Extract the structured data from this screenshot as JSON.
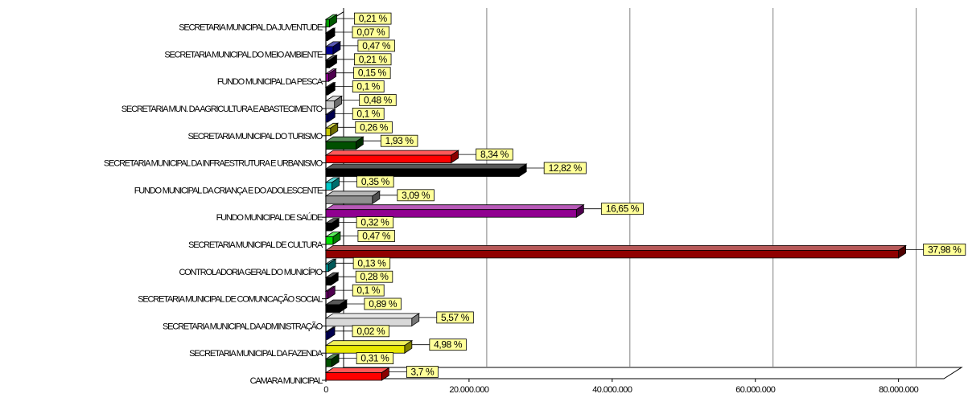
{
  "chart_data": {
    "type": "bar",
    "orientation": "horizontal",
    "three_d": true,
    "title": "",
    "xlabel": "",
    "ylabel": "",
    "xlim": [
      0,
      86000000
    ],
    "x_ticks": [
      0,
      20000000,
      40000000,
      60000000,
      80000000
    ],
    "x_tick_labels": [
      "0",
      "20.000.000",
      "40.000.000",
      "60.000.000",
      "80.000.000"
    ],
    "grid": "vertical",
    "legend": "none",
    "categories": [
      "SECRETARIA MUNICIPAL DA JUVENTUDE",
      "SECRETARIA MUNICIPAL DO MEIO AMBIENTE",
      "FUNDO MUNICIPAL DA PESCA",
      "SECRETARIA MUN. DA AGRICULTURA E ABASTECIMENTO",
      "SECRETARIA MUNICIPAL DO TURISMO",
      "SECRETARIA MUNICIPAL DA INFRAESTRUTURA E URBANISMO",
      "FUNDO MUNICIPAL DA CRIANÇA E DO ADOLESCENTE",
      "FUNDO MUNICIPAL DE SAÚDE",
      "SECRETARIA MUNICIPAL DE CULTURA",
      "CONTROLADORIA GERAL DO MUNICÍPIO",
      "SECRETARIA MUNICIPAL DE COMUNICAÇÃO SOCIAL",
      "SECRETARIA MUNICIPAL DA ADMINISTRAÇÃO",
      "SECRETARIA MUNICIPAL DA FAZENDA",
      "CAMARA MUNICIPAL"
    ],
    "category_label_index": [
      0,
      2,
      4,
      6,
      8,
      10,
      12,
      14,
      16,
      18,
      20,
      22,
      24,
      26
    ],
    "bars": [
      {
        "value": 500000,
        "color": "#00a000",
        "label": "0,21 %"
      },
      {
        "value": 200000,
        "color": "#000000",
        "label": "0,07 %"
      },
      {
        "value": 1000000,
        "color": "#000090",
        "label": "0,47 %"
      },
      {
        "value": 500000,
        "color": "#000000",
        "label": "0,21 %"
      },
      {
        "value": 400000,
        "color": "#900090",
        "label": "0,15 %"
      },
      {
        "value": 250000,
        "color": "#000000",
        "label": "0,1 %"
      },
      {
        "value": 1200000,
        "color": "#c8c8c8",
        "label": "0,48 %"
      },
      {
        "value": 250000,
        "color": "#000090",
        "label": "0,1 %"
      },
      {
        "value": 650000,
        "color": "#c8c800",
        "label": "0,26 %"
      },
      {
        "value": 4200000,
        "color": "#005000",
        "label": "1,93 %"
      },
      {
        "value": 17500000,
        "color": "#ff0000",
        "label": "8,34 %"
      },
      {
        "value": 27000000,
        "color": "#000000",
        "label": "12,82 %"
      },
      {
        "value": 850000,
        "color": "#00c8c8",
        "label": "0,35 %"
      },
      {
        "value": 6500000,
        "color": "#909090",
        "label": "3,09 %"
      },
      {
        "value": 35000000,
        "color": "#900090",
        "label": "16,65 %"
      },
      {
        "value": 800000,
        "color": "#000000",
        "label": "0,32 %"
      },
      {
        "value": 1000000,
        "color": "#00e000",
        "label": "0,47 %"
      },
      {
        "value": 80000000,
        "color": "#900000",
        "label": "37,98 %"
      },
      {
        "value": 350000,
        "color": "#00a0a0",
        "label": "0,13 %"
      },
      {
        "value": 700000,
        "color": "#000000",
        "label": "0,28 %"
      },
      {
        "value": 250000,
        "color": "#900090",
        "label": "0,1 %"
      },
      {
        "value": 1900000,
        "color": "#000000",
        "label": "0,89 %"
      },
      {
        "value": 12000000,
        "color": "#d8d8d8",
        "label": "5,57 %"
      },
      {
        "value": 60000,
        "color": "#000090",
        "label": "0,02 %"
      },
      {
        "value": 11000000,
        "color": "#e8e800",
        "label": "4,98 %"
      },
      {
        "value": 800000,
        "color": "#005000",
        "label": "0,31 %"
      },
      {
        "value": 7800000,
        "color": "#ff0000",
        "label": "3,7 %"
      }
    ],
    "data_label_style": {
      "fill": "#ffff99",
      "border": "#000000"
    }
  }
}
